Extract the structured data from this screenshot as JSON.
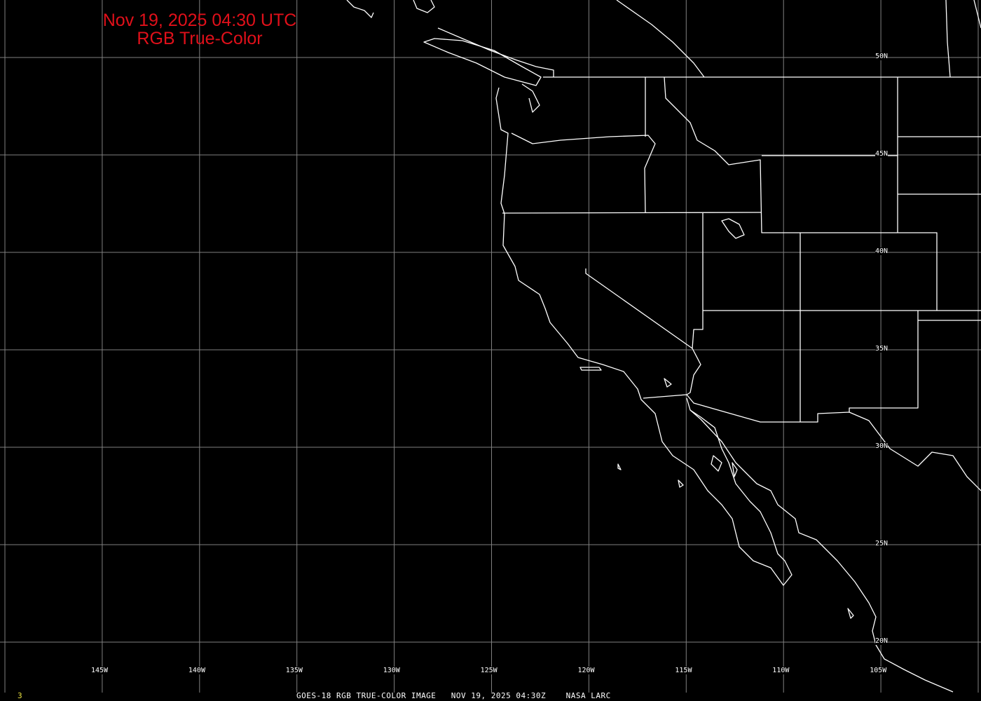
{
  "title": {
    "line1": "Nov 19, 2025 04:30 UTC",
    "line2": "RGB True-Color"
  },
  "footer": {
    "frame": "3",
    "caption": "GOES-18 RGB TRUE-COLOR IMAGE   NOV 19, 2025 04:30Z    NASA LARC"
  },
  "lon_labels": [
    "145W",
    "140W",
    "135W",
    "130W",
    "125W",
    "120W",
    "115W",
    "110W",
    "105W"
  ],
  "lat_labels": [
    "50N",
    "45N",
    "40N",
    "35N",
    "30N",
    "25N",
    "20N"
  ],
  "colors": {
    "background": "#000000",
    "grid": "#808080",
    "outline": "#ffffff",
    "title": "#e0101a",
    "frame": "#e8e040"
  }
}
